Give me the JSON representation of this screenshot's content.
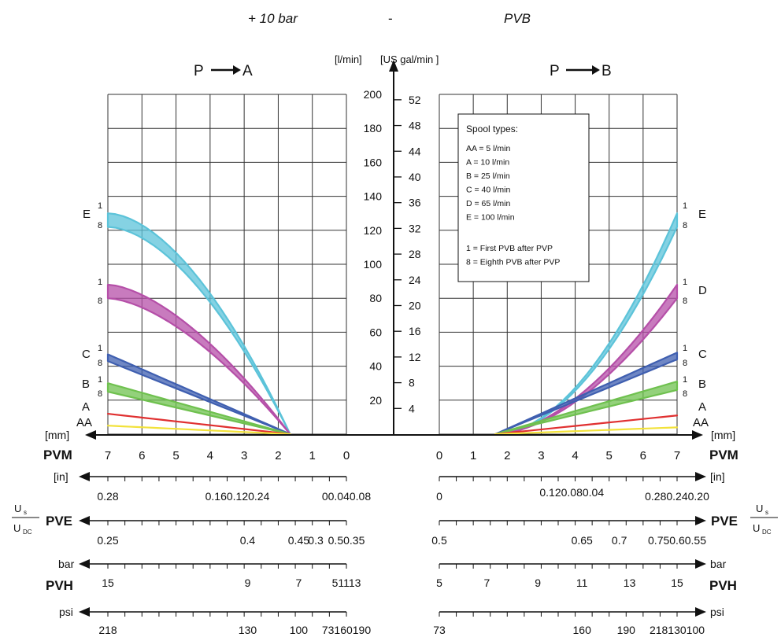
{
  "header": {
    "left": "+ 10 bar",
    "dash": "-",
    "right": "PVB"
  },
  "chart_data": {
    "type": "line",
    "y_units": {
      "primary": "[l/min]",
      "secondary": "[US gal/min ]"
    },
    "y_ticks_lmin": [
      "20",
      "40",
      "60",
      "80",
      "100",
      "120",
      "140",
      "160",
      "180",
      "200"
    ],
    "y_ticks_gal": [
      "4",
      "8",
      "12",
      "16",
      "20",
      "24",
      "28",
      "32",
      "36",
      "40",
      "44",
      "48",
      "52"
    ],
    "ylim_lmin": [
      0,
      200
    ],
    "grid": true,
    "legend": {
      "title": "Spool types:",
      "items": [
        "AA = 5 l/min",
        "A = 10 l/min",
        "B = 25 l/min",
        "C = 40 l/min",
        "D = 65 l/min",
        "E = 100 l/min"
      ],
      "notes": [
        "1 = First PVB after PVP",
        "8 = Eighth PVB after PVP"
      ],
      "placement": "top-right panel"
    },
    "panels": [
      {
        "side": "left",
        "title_from": "P",
        "title_to": "A",
        "x_unit": "[mm]",
        "x_ticks": [
          "7",
          "6",
          "5",
          "4",
          "3",
          "2",
          "1",
          "0"
        ],
        "xlim_mm": [
          7,
          0
        ],
        "series_labels": [
          "E",
          "C",
          "B",
          "A",
          "AA"
        ],
        "range_labels": [
          {
            "top": "1",
            "bottom": "8"
          },
          {
            "top": "1",
            "bottom": "8"
          },
          {
            "top": "1",
            "bottom": "8"
          },
          {
            "top": "1",
            "bottom": "8"
          }
        ],
        "series": [
          {
            "spool": "E",
            "color": "#5cc3d9",
            "start_mm": 1.65,
            "end_mm": 7,
            "end_lpm_1": 130,
            "end_lpm_8": 122,
            "curve": -0.25
          },
          {
            "spool": "D",
            "color": "#b54fa8",
            "start_mm": 1.65,
            "end_mm": 7,
            "end_lpm_1": 88,
            "end_lpm_8": 80,
            "curve": -0.2
          },
          {
            "spool": "C",
            "color": "#3f5fb0",
            "start_mm": 1.65,
            "end_mm": 7,
            "end_lpm_1": 47,
            "end_lpm_8": 43,
            "curve": 0
          },
          {
            "spool": "B",
            "color": "#6fc14f",
            "start_mm": 1.65,
            "end_mm": 7,
            "end_lpm_1": 30,
            "end_lpm_8": 25,
            "curve": 0
          },
          {
            "spool": "A",
            "color": "#e03030",
            "start_mm": 1.65,
            "end_mm": 7,
            "end_lpm_1": 12,
            "end_lpm_8": 12,
            "curve": 0
          },
          {
            "spool": "AA",
            "color": "#f2e23a",
            "start_mm": 1.65,
            "end_mm": 7,
            "end_lpm_1": 5,
            "end_lpm_8": 5,
            "curve": 0
          }
        ]
      },
      {
        "side": "right",
        "title_from": "P",
        "title_to": "B",
        "x_unit": "[mm]",
        "x_ticks": [
          "0",
          "1",
          "2",
          "3",
          "4",
          "5",
          "6",
          "7"
        ],
        "xlim_mm": [
          0,
          7
        ],
        "series_labels": [
          "E",
          "D",
          "C",
          "B",
          "A",
          "AA"
        ],
        "range_labels": [
          {
            "top": "1",
            "bottom": "8"
          },
          {
            "top": "1",
            "bottom": "8"
          },
          {
            "top": "1",
            "bottom": "8"
          },
          {
            "top": "1",
            "bottom": "8"
          }
        ],
        "series": [
          {
            "spool": "E",
            "color": "#5cc3d9",
            "start_mm": 1.65,
            "end_mm": 7,
            "end_lpm_1": 130,
            "end_lpm_8": 122,
            "curve": 0.3
          },
          {
            "spool": "D",
            "color": "#b54fa8",
            "start_mm": 1.65,
            "end_mm": 7,
            "end_lpm_1": 88,
            "end_lpm_8": 80,
            "curve": 0.25
          },
          {
            "spool": "C",
            "color": "#3f5fb0",
            "start_mm": 1.65,
            "end_mm": 7,
            "end_lpm_1": 48,
            "end_lpm_8": 44,
            "curve": 0
          },
          {
            "spool": "B",
            "color": "#6fc14f",
            "start_mm": 1.65,
            "end_mm": 7,
            "end_lpm_1": 31,
            "end_lpm_8": 26,
            "curve": 0
          },
          {
            "spool": "A",
            "color": "#e03030",
            "start_mm": 1.65,
            "end_mm": 7,
            "end_lpm_1": 11,
            "end_lpm_8": 11,
            "curve": 0
          },
          {
            "spool": "AA",
            "color": "#f2e23a",
            "start_mm": 1.65,
            "end_mm": 7,
            "end_lpm_1": 4,
            "end_lpm_8": 4,
            "curve": 0
          }
        ]
      }
    ],
    "scales": {
      "pvm_label": "PVM",
      "in_unit": "[in]",
      "pve_label": "PVE",
      "us_label": "U",
      "us_sub": "s",
      "udc_label": "U",
      "udc_sub": "DC",
      "bar_unit": "bar",
      "pvh_label": "PVH",
      "psi_unit": "psi",
      "left": {
        "in": [
          {
            "mm": 7,
            "t": "0.28"
          },
          {
            "mm": 3.2,
            "t": "0.160.120.24"
          },
          {
            "mm": 0,
            "t": "00.040.08"
          }
        ],
        "pve": [
          {
            "mm": 7,
            "t": "0.25"
          },
          {
            "mm": 2.9,
            "t": "0.4"
          },
          {
            "mm": 1.4,
            "t": "0.45"
          },
          {
            "mm": 0.9,
            "t": "0.3"
          },
          {
            "mm": 0,
            "t": "0.50.35"
          }
        ],
        "bar": [
          {
            "mm": 7,
            "t": "15"
          },
          {
            "mm": 2.9,
            "t": "9"
          },
          {
            "mm": 1.4,
            "t": "7"
          },
          {
            "mm": 0,
            "t": "51113"
          }
        ],
        "psi": [
          {
            "mm": 7,
            "t": "218"
          },
          {
            "mm": 2.9,
            "t": "130"
          },
          {
            "mm": 1.4,
            "t": "100"
          },
          {
            "mm": 0,
            "t": "73160190"
          }
        ]
      },
      "right": {
        "in": [
          {
            "mm": 0,
            "t": "0"
          },
          {
            "mm": 3.9,
            "t": "0.120.080.04"
          },
          {
            "mm": 7,
            "t": "0.280.240.20"
          }
        ],
        "pve": [
          {
            "mm": 0,
            "t": "0.5"
          },
          {
            "mm": 4.2,
            "t": "0.65"
          },
          {
            "mm": 5.3,
            "t": "0.7"
          },
          {
            "mm": 7,
            "t": "0.750.60.55"
          }
        ],
        "bar": [
          {
            "mm": 0,
            "t": "5"
          },
          {
            "mm": 1.4,
            "t": "7"
          },
          {
            "mm": 2.9,
            "t": "9"
          },
          {
            "mm": 4.2,
            "t": "11"
          },
          {
            "mm": 5.6,
            "t": "13"
          },
          {
            "mm": 7,
            "t": "15"
          }
        ],
        "psi": [
          {
            "mm": 0,
            "t": "73"
          },
          {
            "mm": 4.2,
            "t": "160"
          },
          {
            "mm": 5.5,
            "t": "190"
          },
          {
            "mm": 7,
            "t": "218130100"
          }
        ]
      }
    }
  }
}
